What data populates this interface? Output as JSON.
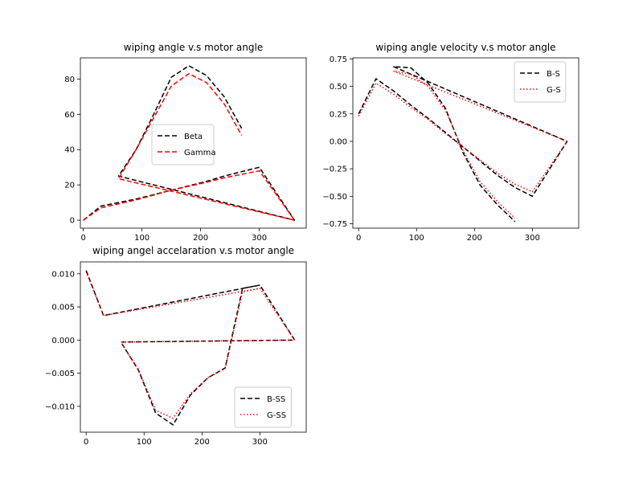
{
  "chart_data": [
    {
      "type": "line",
      "title": "wiping angle v.s motor angle",
      "xlim": [
        -5,
        380
      ],
      "ylim": [
        -4.5,
        92
      ],
      "xticks": [
        0,
        100,
        200,
        300
      ],
      "yticks": [
        0,
        20,
        40,
        60,
        80
      ],
      "grid": false,
      "legend": {
        "placement": "center",
        "entries": [
          {
            "label": "Beta",
            "color": "#000000",
            "dash": "dashed"
          },
          {
            "label": "Gamma",
            "color": "#ff0000",
            "dash": "dashed"
          }
        ]
      },
      "series": [
        {
          "name": "Beta",
          "color": "#000000",
          "dash": "dashed",
          "x": [
            0,
            30,
            90,
            150,
            210,
            240,
            270,
            300,
            360,
            60,
            90,
            120,
            150,
            180,
            210,
            240,
            270
          ],
          "y": [
            0,
            8,
            12,
            17,
            22,
            25,
            27.5,
            30,
            0,
            25,
            40,
            60,
            81,
            87.5,
            82,
            70,
            52
          ]
        },
        {
          "name": "Gamma",
          "color": "#ff0000",
          "dash": "dashed",
          "x": [
            0,
            30,
            90,
            150,
            210,
            240,
            270,
            300,
            360,
            60,
            90,
            120,
            150,
            180,
            210,
            240,
            270
          ],
          "y": [
            0,
            7,
            11.5,
            17,
            21.5,
            24,
            26,
            28,
            0,
            23.5,
            40,
            58,
            76,
            83,
            78,
            66,
            48
          ]
        }
      ]
    },
    {
      "type": "line",
      "title": "wiping angle velocity v.s motor angle",
      "xlim": [
        -10,
        380
      ],
      "ylim": [
        -0.79,
        0.76
      ],
      "xticks": [
        0,
        100,
        200,
        300
      ],
      "yticks": [
        -0.75,
        -0.5,
        -0.25,
        0.0,
        0.25,
        0.5,
        0.75
      ],
      "ytick_labels": [
        "−0.75",
        "−0.50",
        "−0.25",
        "0.00",
        "0.25",
        "0.50",
        "0.75"
      ],
      "grid": false,
      "legend": {
        "placement": "top-right",
        "entries": [
          {
            "label": "B-S",
            "color": "#000000",
            "dash": "dashed"
          },
          {
            "label": "G-S",
            "color": "#ff0000",
            "dash": "dotted"
          }
        ]
      },
      "series": [
        {
          "name": "B-S",
          "color": "#000000",
          "dash": "dashed",
          "x": [
            0,
            30,
            60,
            90,
            120,
            150,
            180,
            210,
            240,
            270,
            300,
            360,
            60,
            90,
            120,
            150,
            180,
            210,
            240,
            270
          ],
          "y": [
            0.25,
            0.57,
            0.46,
            0.33,
            0.21,
            0.08,
            -0.05,
            -0.18,
            -0.31,
            -0.42,
            -0.5,
            0.0,
            0.68,
            0.67,
            0.53,
            0.3,
            -0.1,
            -0.4,
            -0.58,
            -0.73
          ]
        },
        {
          "name": "G-S",
          "color": "#ff0000",
          "dash": "dotted",
          "x": [
            0,
            30,
            60,
            90,
            120,
            150,
            180,
            210,
            240,
            270,
            300,
            360,
            60,
            90,
            120,
            150,
            180,
            210,
            240,
            270
          ],
          "y": [
            0.23,
            0.53,
            0.43,
            0.31,
            0.2,
            0.07,
            -0.05,
            -0.17,
            -0.29,
            -0.39,
            -0.46,
            0.0,
            0.64,
            0.61,
            0.5,
            0.28,
            -0.08,
            -0.37,
            -0.55,
            -0.7
          ]
        }
      ]
    },
    {
      "type": "line",
      "title": "wiping angel accelaration v.s motor angle",
      "xlim": [
        -10,
        380
      ],
      "ylim": [
        -0.0139,
        0.0118
      ],
      "xticks": [
        0,
        100,
        200,
        300
      ],
      "yticks": [
        -0.01,
        -0.005,
        0.0,
        0.005,
        0.01
      ],
      "ytick_labels": [
        "−0.010",
        "−0.005",
        "0.000",
        "0.005",
        "0.010"
      ],
      "grid": false,
      "legend": {
        "placement": "bottom-right",
        "entries": [
          {
            "label": "B-SS",
            "color": "#000000",
            "dash": "dashed"
          },
          {
            "label": "G-SS",
            "color": "#ff0000",
            "dash": "dotted"
          }
        ]
      },
      "series": [
        {
          "name": "B-SS",
          "color": "#000000",
          "dash": "dashed",
          "x": [
            0,
            30,
            300,
            360,
            60,
            90,
            120,
            150,
            180,
            210,
            240,
            270,
            300
          ],
          "y": [
            0.0105,
            0.0037,
            0.0083,
            0.0,
            -0.0003,
            -0.0045,
            -0.011,
            -0.0128,
            -0.0083,
            -0.0057,
            -0.0042,
            0.0078,
            0.0083
          ]
        },
        {
          "name": "G-SS",
          "color": "#ff0000",
          "dash": "dotted",
          "x": [
            0,
            30,
            300,
            360,
            60,
            90,
            120,
            150,
            180,
            210,
            240,
            270,
            300
          ],
          "y": [
            0.0103,
            0.0037,
            0.0078,
            0.0,
            -0.0003,
            -0.0044,
            -0.0106,
            -0.0118,
            -0.0081,
            -0.0057,
            -0.0043,
            0.0073,
            0.0078
          ]
        }
      ]
    }
  ]
}
